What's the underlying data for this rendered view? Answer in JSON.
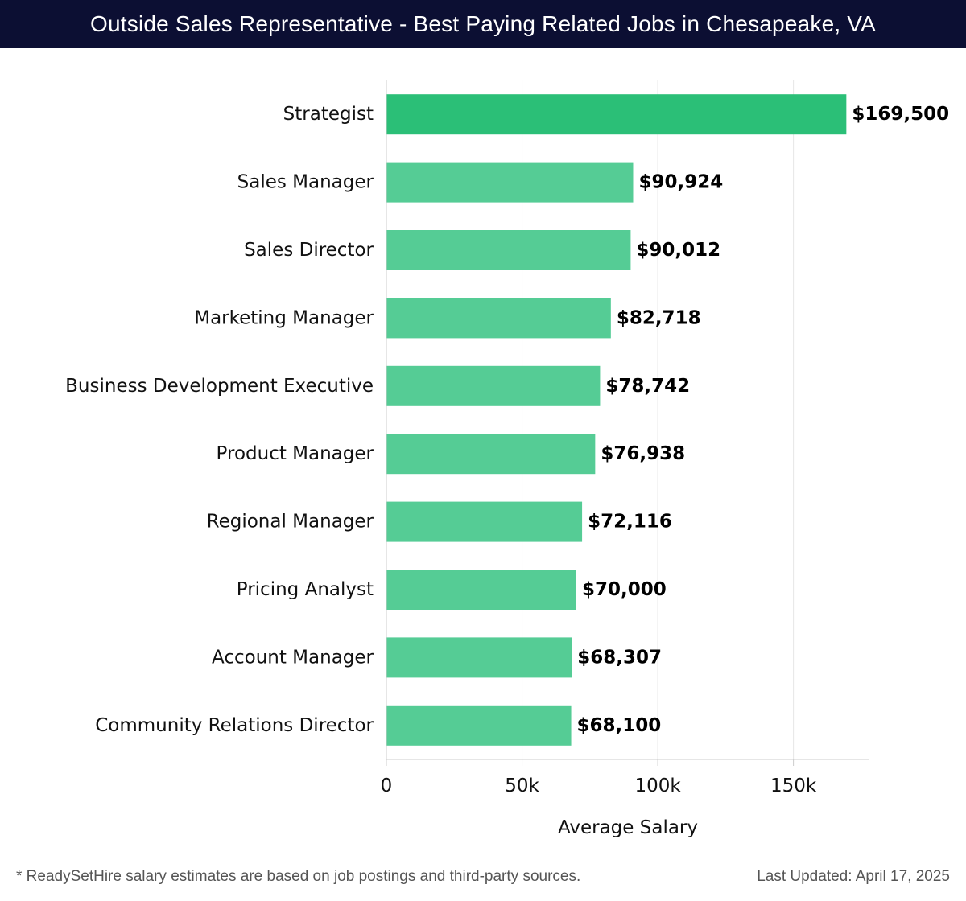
{
  "header": {
    "title": "Outside Sales Representative - Best Paying Related Jobs in Chesapeake, VA"
  },
  "chart_data": {
    "type": "bar",
    "orientation": "horizontal",
    "title": "Outside Sales Representative - Best Paying Related Jobs in Chesapeake, VA",
    "xlabel": "Average Salary",
    "ylabel": "",
    "xlim": [
      0,
      178000
    ],
    "xticks": [
      0,
      50000,
      100000,
      150000
    ],
    "xtick_labels": [
      "0",
      "50k",
      "100k",
      "150k"
    ],
    "grid": true,
    "categories": [
      "Strategist",
      "Sales Manager",
      "Sales Director",
      "Marketing Manager",
      "Business Development Executive",
      "Product Manager",
      "Regional Manager",
      "Pricing Analyst",
      "Account Manager",
      "Community Relations Director"
    ],
    "values": [
      169500,
      90924,
      90012,
      82718,
      78742,
      76938,
      72116,
      70000,
      68307,
      68100
    ],
    "value_labels": [
      "$169,500",
      "$90,924",
      "$90,012",
      "$82,718",
      "$78,742",
      "$76,938",
      "$72,116",
      "$70,000",
      "$68,307",
      "$68,100"
    ],
    "colors": {
      "top_bar": "#2bbf77",
      "bar": "#55cc95",
      "grid": "#e6e6e6",
      "axis": "#cccccc"
    }
  },
  "footer": {
    "note": "* ReadySetHire salary estimates are based on job postings and third-party sources.",
    "updated": "Last Updated: April 17, 2025"
  }
}
